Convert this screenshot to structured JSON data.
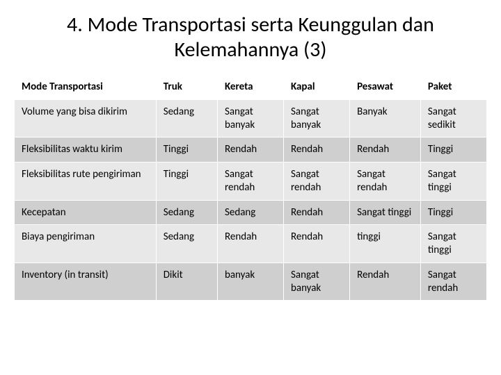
{
  "title": "4. Mode Transportasi serta Keunggulan dan Kelemahannya (3)",
  "table": {
    "columns": [
      "Mode Transportasi",
      "Truk",
      "Kereta",
      "Kapal",
      "Pesawat",
      "Paket"
    ],
    "col_widths_pct": [
      30,
      13,
      14,
      14,
      15,
      14
    ],
    "rows": [
      [
        "Volume yang bisa dikirim",
        "Sedang",
        "Sangat banyak",
        "Sangat banyak",
        "Banyak",
        "Sangat sedikit"
      ],
      [
        "Fleksibilitas waktu kirim",
        "Tinggi",
        "Rendah",
        "Rendah",
        "Rendah",
        "Tinggi"
      ],
      [
        "Fleksibilitas rute pengiriman",
        "Tinggi",
        "Sangat rendah",
        "Sangat rendah",
        "Sangat rendah",
        "Sangat tinggi"
      ],
      [
        "Kecepatan",
        "Sedang",
        "Sedang",
        "Rendah",
        "Sangat tinggi",
        "Tinggi"
      ],
      [
        "Biaya pengiriman",
        "Sedang",
        "Rendah",
        "Rendah",
        "tinggi",
        "Sangat tinggi"
      ],
      [
        "Inventory (in transit)",
        "Dikit",
        "banyak",
        "Sangat banyak",
        "Rendah",
        "Sangat rendah"
      ]
    ],
    "header_bg": "#ffffff",
    "row_odd_bg": "#e8e8e8",
    "row_even_bg": "#cfcfcf",
    "border_color": "#ffffff",
    "text_color": "#000000",
    "font_size_pt": 15,
    "title_font_size_pt": 30
  }
}
